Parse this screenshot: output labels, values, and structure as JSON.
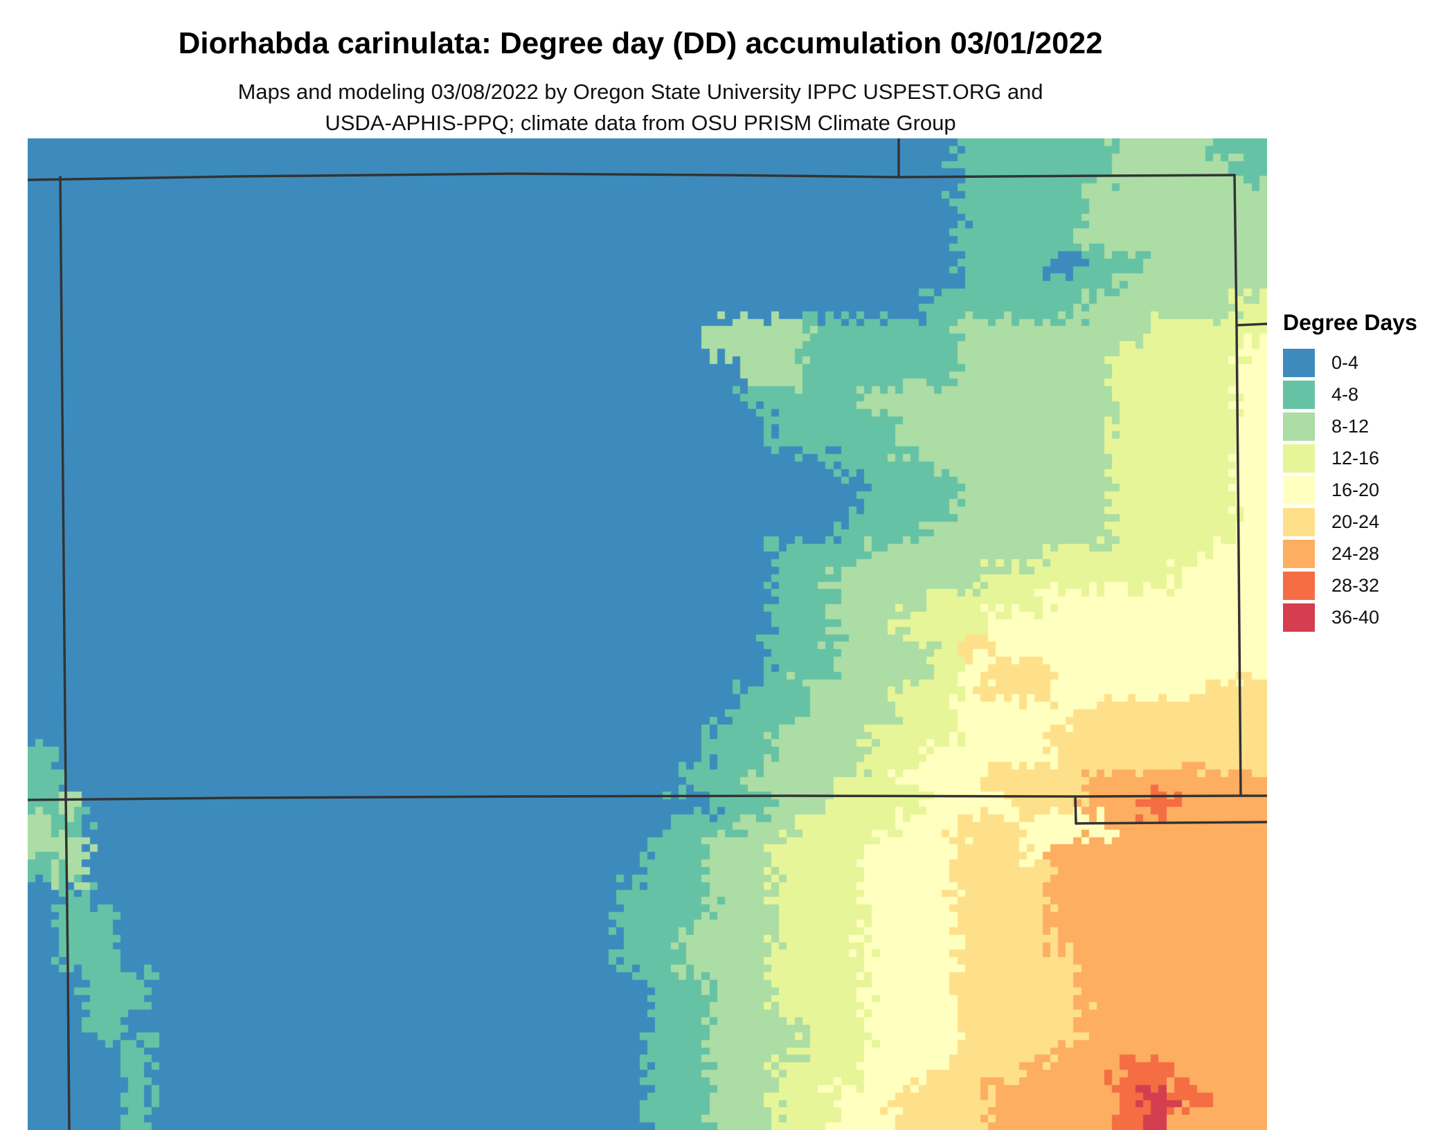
{
  "title": "Diorhabda carinulata: Degree day (DD) accumulation 03/01/2022",
  "subtitle": {
    "line1": "Maps and modeling 03/08/2022 by Oregon State University IPPC USPEST.ORG and",
    "line2": "USDA-APHIS-PPQ; climate data from OSU PRISM Climate Group"
  },
  "legend": {
    "title": "Degree Days",
    "entries": [
      {
        "label": "0-4",
        "color": "#3D8BBD"
      },
      {
        "label": "4-8",
        "color": "#66C2A5"
      },
      {
        "label": "8-12",
        "color": "#ABDDA4"
      },
      {
        "label": "12-16",
        "color": "#E6F598"
      },
      {
        "label": "16-20",
        "color": "#FFFFBF"
      },
      {
        "label": "20-24",
        "color": "#FEE08B"
      },
      {
        "label": "24-28",
        "color": "#FDAE61"
      },
      {
        "label": "28-32",
        "color": "#F46D43"
      },
      {
        "label": "36-40",
        "color": "#D53E4F"
      }
    ]
  },
  "map": {
    "region": "Colorado and surrounding state borders",
    "border_color": "#333333",
    "palette": {
      "a": "#3D8BBD",
      "b": "#66C2A5",
      "c": "#ABDDA4",
      "d": "#E6F598",
      "e": "#FFFFBF",
      "f": "#FEE08B",
      "g": "#FDAE61",
      "h": "#F46D43",
      "i": "#D53E4F"
    },
    "grid": {
      "cols": 40,
      "rows_rle": [
        "a30 b5 c3 b2",
        "a30 b5 c4 b1",
        "a30 b4 c6",
        "a30 b4 c6",
        "a30 b4 c6",
        "a30 b3 a1 b2 c4",
        "a30 b5 c5",
        "a29 b5 c5 d1",
        "a22 c3 b5 c6 d4",
        "a22 c3 b5 c5 d4 e1",
        "a23 c2 b5 c5 d4 e1",
        "a23 b4 c8 d4 e1",
        "a24 b4 c7 d4 e1",
        "a24 b4 c7 d4 e1",
        "a26 b3 c6 d4 e1",
        "a27 b3 c5 d4 e1",
        "a27 b3 c5 d4 e1",
        "a26 b3 c6 d4 e1",
        "a24 b3 c6 d5 e2",
        "a24 b2 c5 d6 e3",
        "a24 b2 c3 d4 e7",
        "a24 b2 c2 d3 e9",
        "a24 b2 c3 d1 f1 e9",
        "a24 b2 c3 d1 e1 f2 e7",
        "a23 b2 c3 d2 e1 f2 e5 f2",
        "a23 b2 c3 d2 e4 f6",
        "a22 b2 c3 d3 e3 f7",
        "b1 a21 b2 c3 d2 e4 f7",
        "b1 a20 b2 c3 d2 e3 f3 g6",
        "b1 c1 a20 b2 c2 d3 e3 f2 g2 h1 g3",
        "c1 b1 a19 b2 c2 d3 e2 f2 e3 g5",
        "c2 a18 b2 c2 d3 e3 f2 e1 g7",
        "b1 c1 a18 b2 c2 d3 e3 f3 g7",
        "a1 b1 a17 b3 c2 d3 e3 f3 g7",
        "a1 b2 a16 b3 c2 d3 e3 f3 g7",
        "a1 b2 a16 b2 c3 d3 e3 f3 g7",
        "a1 b2 a16 b2 c3 d3 e3 f4 g6",
        "a2 b2 a16 b2 c2 d3 e3 f4 g6",
        "a2 b2 a16 b2 c2 d3 e3 f4 g6",
        "a2 b1 a17 b2 c3 d2 e3 f4 g6",
        "a3 b1 a16 b2 c3 d2 e3 f3 g7",
        "a3 b1 a16 b2 c2 d3 e2 f3 g3 h2 g3",
        "a3 b1 a16 b2 c2 d2 e2 f3 g4 h1 i1 h1 g2",
        "a3 b1 a16 b2 c2 d2 e2 f3 g4 h1 i1 g3"
      ]
    },
    "borders": [
      {
        "name": "north-line-41N",
        "points": [
          [
            0,
            60
          ],
          [
            300,
            55
          ],
          [
            700,
            51
          ],
          [
            1000,
            53
          ],
          [
            1258,
            56
          ],
          [
            1550,
            54
          ],
          [
            1743,
            53
          ]
        ]
      },
      {
        "name": "wyoming-nebraska-border",
        "points": [
          [
            1258,
            0
          ],
          [
            1258,
            56
          ]
        ]
      },
      {
        "name": "colorado-west-border",
        "points": [
          [
            47,
            56
          ],
          [
            51,
            500
          ],
          [
            55,
            950
          ]
        ]
      },
      {
        "name": "arizona-newmexico-border",
        "points": [
          [
            55,
            950
          ],
          [
            58,
            1200
          ],
          [
            60,
            1433
          ]
        ]
      },
      {
        "name": "colorado-east-border",
        "points": [
          [
            1743,
            53
          ],
          [
            1746,
            270
          ],
          [
            1749,
            600
          ],
          [
            1752,
            950
          ]
        ]
      },
      {
        "name": "nebraska-kansas-border",
        "points": [
          [
            1746,
            270
          ],
          [
            1790,
            268
          ]
        ]
      },
      {
        "name": "south-line-37N",
        "points": [
          [
            0,
            956
          ],
          [
            300,
            953
          ],
          [
            700,
            951
          ],
          [
            1100,
            950
          ],
          [
            1513,
            951
          ],
          [
            1752,
            950
          ],
          [
            1790,
            950
          ]
        ]
      },
      {
        "name": "newmexico-oklahoma-border",
        "points": [
          [
            1513,
            951
          ],
          [
            1514,
            990
          ]
        ]
      },
      {
        "name": "oklahoma-texas-border",
        "points": [
          [
            1514,
            990
          ],
          [
            1790,
            988
          ]
        ]
      }
    ]
  }
}
